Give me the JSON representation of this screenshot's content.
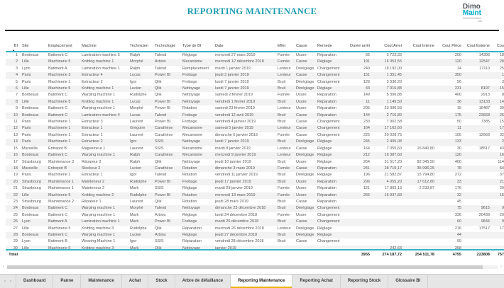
{
  "header": {
    "title": "REPORTING MAINTENANCE",
    "logo": {
      "line1": "Dimo",
      "line2": "Maint",
      "sub": "MX"
    }
  },
  "table": {
    "columns": [
      {
        "key": "bi",
        "label": "BI",
        "sorted": true
      },
      {
        "key": "site",
        "label": "Site"
      },
      {
        "key": "emplacement",
        "label": "Emplacement"
      },
      {
        "key": "machine",
        "label": "Machine"
      },
      {
        "key": "technicien",
        "label": "Technicien"
      },
      {
        "key": "technologie",
        "label": "Technologie"
      },
      {
        "key": "type_de_bi",
        "label": "Type de BI"
      },
      {
        "key": "date",
        "label": "Date"
      },
      {
        "key": "effet",
        "label": "Effet"
      },
      {
        "key": "cause",
        "label": "Cause"
      },
      {
        "key": "remede",
        "label": "Remede"
      },
      {
        "key": "duree_arret",
        "label": "Durée arrêt",
        "num": true
      },
      {
        "key": "cout_arret",
        "label": "Cout Arret",
        "num": true
      },
      {
        "key": "cout_interne",
        "label": "Cout Interne",
        "num": true
      },
      {
        "key": "cout_piece",
        "label": "Cout Pièce",
        "num": true
      },
      {
        "key": "cout_externe",
        "label": "Cout Externe",
        "num": true
      },
      {
        "key": "cout_plus",
        "label": "Cou",
        "num": true
      }
    ],
    "rows": [
      [
        "1",
        "Bordeaux",
        "Batiment C",
        "Lamination machine 5",
        "Ralph",
        "Talend",
        "Réglage",
        "mercredi 27 mars 2019",
        "Fumée",
        "Usure",
        "Réparation",
        "65",
        "3 722,33",
        "",
        "200",
        "14395",
        "18"
      ],
      [
        "2",
        "Lille",
        "Machinerie 5",
        "Knitting machine 1",
        "Morphé",
        "Arbios",
        "Mecanisme",
        "mercredi 12 décembre 2018",
        "Fumée",
        "Casse",
        "Réglage",
        "191",
        "16 053,55",
        "",
        "120",
        "12547",
        "28"
      ],
      [
        "3",
        "Lyon",
        "Batiment A",
        "Lamination machine 1",
        "Ralph",
        "Talend",
        "Remplacement",
        "mardi 1 janvier 2019",
        "Lenteur",
        "Déréglage",
        "Changement",
        "240",
        "18 192,00",
        "",
        "14",
        "17110",
        "25"
      ],
      [
        "4",
        "Paris",
        "Machinerie 3",
        "Extracteur 4",
        "Lucas",
        "Power BI",
        "Frottage",
        "jeudi 3 janvier 2019",
        "Lenteur",
        "Casse",
        "Changement",
        "151",
        "1 351,45",
        "",
        "350",
        "",
        "1"
      ],
      [
        "5",
        "Paris",
        "Machinerie 1",
        "Extracteur 2",
        "Igor",
        "Qlik",
        "Frottage",
        "lundi 7 janvier 2019",
        "Bruit",
        "Déréglage",
        "Changement",
        "129",
        "3 930,20",
        "",
        "56",
        "",
        "3"
      ],
      [
        "6",
        "Lille",
        "Machinerie 5",
        "Knitting machine 1",
        "Lucien",
        "Qlik",
        "Nettoyage",
        "lundi 7 janvier 2019",
        "Bruit",
        "Déréglage",
        "Réglage",
        "43",
        "7 016,88",
        "",
        "231",
        "8197",
        "15"
      ],
      [
        "7",
        "Bordeaux",
        "Batiment C",
        "Warping machine 1",
        "Rudolphe",
        "Qlik",
        "Nettoyage",
        "samedi 2 février 2019",
        "Fumée",
        "Usure",
        "Réparation",
        "149",
        "5 306,88",
        "",
        "400",
        "2913",
        "8"
      ],
      [
        "8",
        "Lille",
        "Machinerie 5",
        "Knitting machine 1",
        "Lucas",
        "Power BI",
        "Nettoyage",
        "vendredi 1 février 2019",
        "Bruit",
        "Usure",
        "Réparation",
        "11",
        "1 149,50",
        "",
        "36",
        "13133",
        "14"
      ],
      [
        "9",
        "Bordeaux",
        "Batiment C",
        "Warping machine 1",
        "Morphé",
        "Power BI",
        "Rotation",
        "samedi 23 février 2019",
        "Lenteur",
        "Usure",
        "Réparation",
        "205",
        "23 390,50",
        "",
        "15",
        "16487",
        "39"
      ],
      [
        "10",
        "Bordeaux",
        "Batiment C",
        "Lamination machine 4",
        "Lucas",
        "Talend",
        "Frottage",
        "vendredi 12 avril 2019",
        "Bruit",
        "Casse",
        "Réparation",
        "144",
        "2 716,80",
        "",
        "175",
        "23668",
        "26"
      ],
      [
        "11",
        "Paris",
        "Machinerie 1",
        "Extracteur 3",
        "Laurent",
        "Power BI",
        "Frottage",
        "vendredi 4 janvier 2019",
        "Bruit",
        "Casse",
        "Changement",
        "233",
        "7 902,58",
        "",
        "50",
        "7385",
        "15"
      ],
      [
        "12",
        "Paris",
        "Machinerie 1",
        "Extracteur 1",
        "Grégoire",
        "Carathèse",
        "Mecanisme",
        "samedi 5 janvier 2019",
        "Lenteur",
        "Casse",
        "Changement",
        "164",
        "17 162,60",
        "",
        "11",
        "",
        "17"
      ],
      [
        "13",
        "Paris",
        "Machinerie 1",
        "Extracteur 1",
        "Laurent",
        "Carathèse",
        "Mecanisme",
        "dimanche 6 janvier 2019",
        "Fumée",
        "Casse",
        "Changement",
        "225",
        "20 028,75",
        "",
        "105",
        "12669",
        "32"
      ],
      [
        "14",
        "Paris",
        "Machinerie 1",
        "Extracteur 2",
        "Igor",
        "SSIS",
        "Nettoyage",
        "lundi 7 janvier 2019",
        "Bruit",
        "Déréglage",
        "Réglage",
        "245",
        "2 405,08",
        "",
        "133",
        "",
        "2"
      ],
      [
        "15",
        "Marseille",
        "Entrepot B",
        "Magasineur 1",
        "Laurent",
        "SSIS",
        "Mecanisme",
        "mardi 8 janvier 2019",
        "Lenteur",
        "Casse",
        "Réglage",
        "164",
        "7 055,60",
        "16 840,80",
        "30",
        "18517",
        "43"
      ],
      [
        "16",
        "Bordeaux",
        "Batiment C",
        "Warping machine 1",
        "Ralph",
        "Carathèse",
        "Mecanisme",
        "mercredi 9 janvier 2019",
        "Lenteur",
        "Déréglage",
        "Réglage",
        "212",
        "16 387,60",
        "",
        "120",
        "",
        "16"
      ],
      [
        "17",
        "Strasbourg",
        "Maintenance 3",
        "Répareur 2",
        "Ralph",
        "Qlik",
        "Nettoyage",
        "jeudi 10 janvier 2019",
        "Bruit",
        "Usure",
        "Réglage",
        "264",
        "31 517,20",
        "82 345,50",
        "400",
        "",
        "114"
      ],
      [
        "18",
        "Marseille",
        "Entrepot B",
        "Stockeur 2",
        "Lucien",
        "Carathèse",
        "Rotation",
        "dimanche 3 mars 2019",
        "Fumée",
        "Casse",
        "Réparation",
        "241",
        "28 719,17",
        "35 996,25",
        "78",
        "",
        "64"
      ],
      [
        "19",
        "Paris",
        "Machinerie 1",
        "Extracteur 1",
        "Igor",
        "Talend",
        "Rotation",
        "vendredi 11 janvier 2019",
        "Bruit",
        "Déréglage",
        "Réglage",
        "196",
        "21 582,87",
        "15 794,80",
        "272",
        "",
        "37"
      ],
      [
        "20",
        "Strasbourg",
        "Maintenance 1",
        "Mainteneur 2",
        "Rudolphe",
        "Power BI",
        "Frottage",
        "jeudi 17 janvier 2019",
        "Bruit",
        "Usure",
        "Réparation",
        "296",
        "4 055,20",
        "17 612,80",
        "33",
        "",
        "21"
      ],
      [
        "21",
        "Strasbourg",
        "Maintenance 1",
        "Mainteneur 2",
        "Mark",
        "SSIS",
        "Réglage",
        "mardi 29 janvier 2019",
        "Fumée",
        "Usure",
        "Réparation",
        "121",
        "17 803,13",
        "2 233,87",
        "176",
        "",
        "20"
      ],
      [
        "22",
        "Lille",
        "Machinerie 5",
        "Knitting machine 2",
        "Rudolphe",
        "Power BI",
        "Rotation",
        "mercredi 13 mars 2019",
        "Fumée",
        "Usure",
        "Réparation",
        "266",
        "15 937,83",
        "",
        "32",
        "",
        "15"
      ],
      [
        "23",
        "Strasbourg",
        "Maintenance 2",
        "Répareur 1",
        "Laurent",
        "Qlik",
        "Rotation",
        "jeudi 28 mars 2019",
        "Bruit",
        "Casse",
        "Réparation",
        "",
        "",
        "",
        "45",
        "",
        ""
      ],
      [
        "24",
        "Bordeaux",
        "Batiment C",
        "Warping machine 1",
        "Morphé",
        "Talend",
        "Nettoyage",
        "dimanche 23 décembre 2018",
        "Bruit",
        "Déréglage",
        "Changement",
        "",
        "",
        "",
        "75",
        "9615",
        "9"
      ],
      [
        "25",
        "Bordeaux",
        "Batiment C",
        "Warping machine 1",
        "Mark",
        "Arbios",
        "Réglage",
        "lundi 24 décembre 2018",
        "Fumée",
        "Usure",
        "Changement",
        "",
        "",
        "",
        "336",
        "20439",
        "20"
      ],
      [
        "26",
        "Lyon",
        "Batiment A",
        "Lamination machine 1",
        "Mark",
        "Power BI",
        "Frottage",
        "mardi 25 décembre 2018",
        "Bruit",
        "Casse",
        "Changement",
        "",
        "",
        "",
        "60",
        "9844",
        "9"
      ],
      [
        "27",
        "Lille",
        "Machinerie 5",
        "Knitting machine 3",
        "Rudolphe",
        "Qlik",
        "Réparation",
        "mercredi 26 décembre 2018",
        "Lenteur",
        "Déréglage",
        "Réglage",
        "",
        "",
        "",
        "216",
        "17517",
        "17"
      ],
      [
        "28",
        "Bordeaux",
        "Batiment C",
        "Warping machine 1",
        "Lucien",
        "Arbios",
        "Réglage",
        "jeudi 27 décembre 2018",
        "Bruit",
        "Déréglage",
        "Réglage",
        "",
        "",
        "",
        "44",
        "",
        ""
      ],
      [
        "29",
        "Lyon",
        "Batiment B",
        "Wearing Machine 1",
        "Igor",
        "SSIS",
        "Réparation",
        "vendredi 28 décembre 2018",
        "Bruit",
        "Casse",
        "Changement",
        "",
        "",
        "",
        "99",
        "",
        ""
      ],
      [
        "30",
        "Lille",
        "Machinerie 5",
        "Knitting machine 3",
        "Mark",
        "Qlik",
        "Nettoyage",
        "janvier 2019",
        "",
        "",
        "",
        "",
        "242,63",
        "",
        "258",
        "",
        ""
      ]
    ],
    "total": {
      "bi": "Total",
      "duree_arret": "3955",
      "cout_arret": "274 187,72",
      "cout_interne": "254 511,78",
      "cout_piece": "4755",
      "cout_externe": "223808",
      "cout_plus": "757"
    }
  },
  "scrollbar": {
    "left_arrow": "‹",
    "right_arrow": "›"
  },
  "footer": {
    "tabs": [
      {
        "label": "Dashboard",
        "active": false
      },
      {
        "label": "Panne",
        "active": false
      },
      {
        "label": "Maintenance",
        "active": false
      },
      {
        "label": "Achat",
        "active": false
      },
      {
        "label": "Stock",
        "active": false
      },
      {
        "label": "Arbre de défaillance",
        "active": false
      },
      {
        "label": "Reporting Maintenance",
        "active": true
      },
      {
        "label": "Reporting Achat",
        "active": false
      },
      {
        "label": "Reporting Stock",
        "active": false
      },
      {
        "label": "Glossaire BI",
        "active": false
      }
    ],
    "nav_left": "‹",
    "nav_right": "›"
  }
}
